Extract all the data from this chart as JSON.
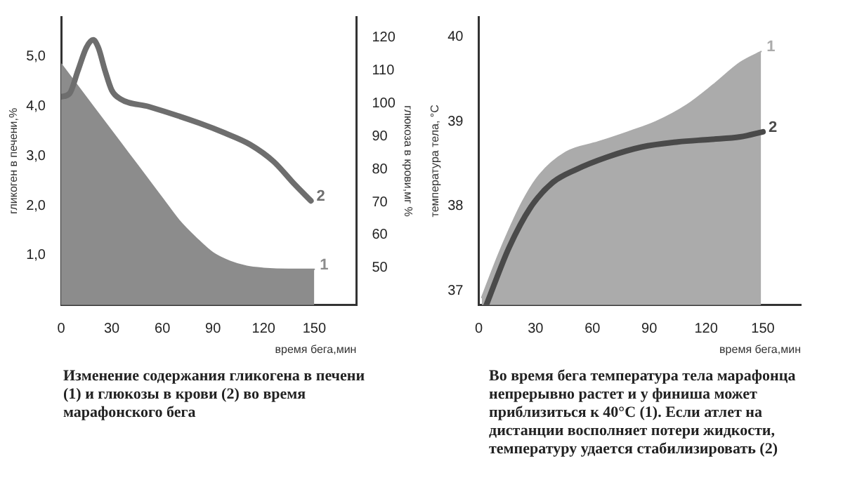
{
  "chart_data": [
    {
      "type": "area",
      "xlabel": "время бега,мин",
      "ylabel": "гликоген в печени,%",
      "y2label": "глюкоза в крови,мг %",
      "xlim": [
        0,
        175
      ],
      "xticks": [
        0,
        30,
        60,
        90,
        120,
        150
      ],
      "ylim": [
        0,
        5.8
      ],
      "yticks": [
        {
          "value": 1,
          "label": "1,0"
        },
        {
          "value": 2,
          "label": "2,0"
        },
        {
          "value": 3,
          "label": "3,0"
        },
        {
          "value": 4,
          "label": "4,0"
        },
        {
          "value": 5,
          "label": "5,0"
        }
      ],
      "y2lim": [
        38.7,
        126.3
      ],
      "y2ticks": [
        50,
        60,
        70,
        80,
        90,
        100,
        110,
        120
      ],
      "grid": false,
      "legend": false,
      "marker": "none",
      "line_style": "solid",
      "series": [
        {
          "name": "1",
          "type": "area",
          "color": "#8c8c8c",
          "x": [
            0,
            10,
            20,
            30,
            40,
            50,
            60,
            70,
            80,
            90,
            100,
            110,
            120,
            135,
            150
          ],
          "values": [
            4.85,
            4.4,
            3.95,
            3.5,
            3.05,
            2.6,
            2.15,
            1.7,
            1.35,
            1.05,
            0.88,
            0.78,
            0.74,
            0.72,
            0.72
          ]
        },
        {
          "name": "2",
          "type": "line",
          "axis": "y2",
          "color": "#6e6e6e",
          "x": [
            0,
            5,
            10,
            15,
            19,
            22,
            26,
            30,
            35,
            52,
            82,
            97,
            112,
            126,
            138,
            148
          ],
          "values": [
            102,
            103,
            110,
            117,
            119.3,
            117,
            110,
            104,
            101.4,
            99,
            94,
            91,
            87.5,
            82.3,
            75.6,
            70.4
          ]
        }
      ],
      "annotations": [
        "Изменение содержания гликогена в печени (1) и глюкозы в крови (2) во время марафонского бега"
      ]
    },
    {
      "type": "area",
      "xlabel": "время бега,мин",
      "ylabel": "температура тела, °С",
      "xlim": [
        0,
        170
      ],
      "xticks": [
        0,
        30,
        60,
        90,
        120,
        150
      ],
      "ylim": [
        36.83,
        40.24
      ],
      "yticks": [
        37,
        38,
        39,
        40
      ],
      "grid": false,
      "legend": false,
      "marker": "none",
      "line_style": "solid",
      "series": [
        {
          "name": "1",
          "type": "area",
          "color": "#ababab",
          "x": [
            1.6,
            11,
            23,
            32,
            46,
            63,
            79,
            93.5,
            110,
            124,
            138,
            149
          ],
          "values": [
            36.92,
            37.46,
            38.05,
            38.37,
            38.64,
            38.76,
            38.88,
            39.0,
            39.2,
            39.44,
            39.7,
            39.83
          ]
        },
        {
          "name": "2",
          "type": "line",
          "color": "#4a4a4a",
          "x": [
            4,
            16,
            27.5,
            39,
            51,
            67.6,
            86,
            105,
            122,
            138,
            150
          ],
          "values": [
            36.83,
            37.51,
            37.99,
            38.28,
            38.43,
            38.58,
            38.7,
            38.76,
            38.79,
            38.82,
            38.88
          ]
        }
      ],
      "annotations": [
        "Во время бега температура тела марафонца непрерывно растет и у финиша может приблизиться к 40°С (1). Если атлет на дистанции восполняет потери жидкости, температуру удается стабилизировать (2)"
      ]
    }
  ]
}
